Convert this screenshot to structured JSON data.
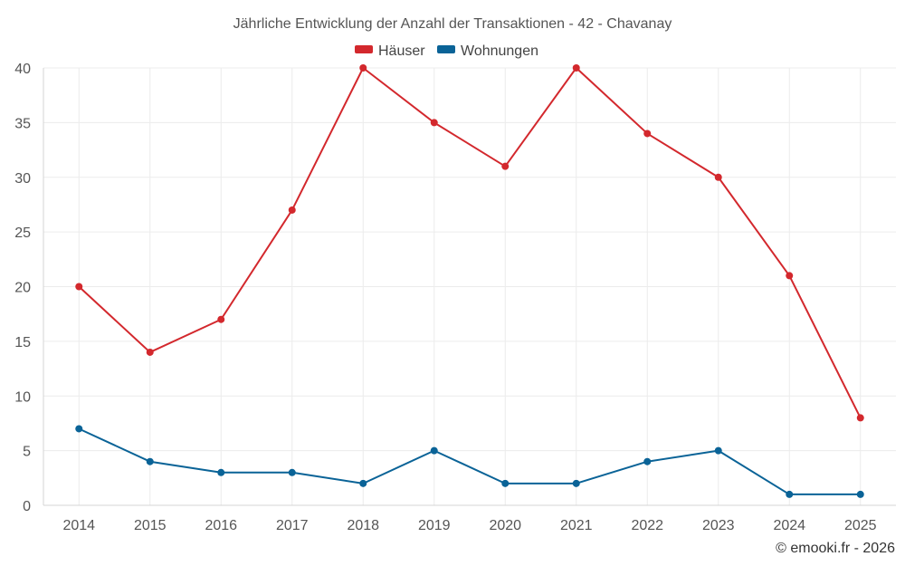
{
  "chart_data": {
    "type": "line",
    "title": "Jährliche Entwicklung der Anzahl der Transaktionen - 42 - Chavanay",
    "categories": [
      "2014",
      "2015",
      "2016",
      "2017",
      "2018",
      "2019",
      "2020",
      "2021",
      "2022",
      "2023",
      "2024",
      "2025"
    ],
    "series": [
      {
        "name": "Häuser",
        "color": "#d3282d",
        "values": [
          20,
          14,
          17,
          27,
          40,
          35,
          31,
          40,
          34,
          30,
          21,
          8
        ]
      },
      {
        "name": "Wohnungen",
        "color": "#0a6397",
        "values": [
          7,
          4,
          3,
          3,
          2,
          5,
          2,
          2,
          4,
          5,
          1,
          1
        ]
      }
    ],
    "yticks": [
      0,
      5,
      10,
      15,
      20,
      25,
      30,
      35,
      40
    ],
    "ylim": [
      0,
      40
    ],
    "grid": true,
    "legend": "top-center",
    "xlabel": "",
    "ylabel": ""
  },
  "credit": "© emooki.fr - 2026"
}
